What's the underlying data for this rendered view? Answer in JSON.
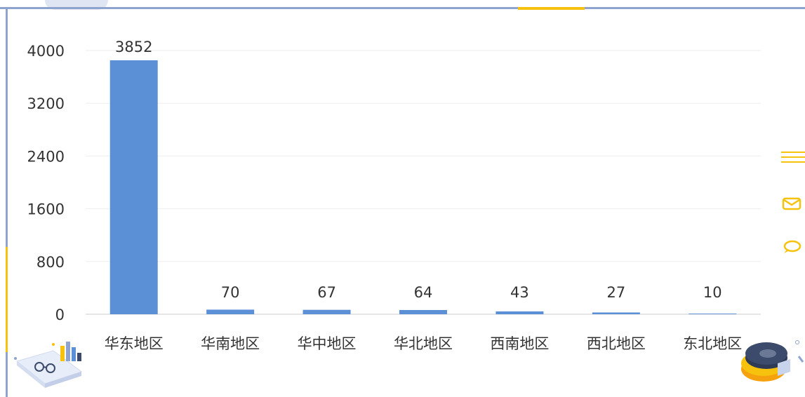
{
  "chart_data": {
    "type": "bar",
    "categories": [
      "华东地区",
      "华南地区",
      "华中地区",
      "华北地区",
      "西南地区",
      "西北地区",
      "东北地区"
    ],
    "values": [
      3852,
      70,
      67,
      64,
      43,
      27,
      10
    ],
    "title": "",
    "xlabel": "",
    "ylabel": "",
    "ylim": [
      0,
      4000
    ],
    "yticks": [
      0,
      800,
      1600,
      2400,
      3200,
      4000
    ],
    "grid": true,
    "bar_color": "#5b8fd6",
    "data_labels": true
  },
  "colors": {
    "frame": "#8fa3cf",
    "accent": "#f6c20e",
    "bar": "#5b8fd6"
  },
  "side_tools": [
    {
      "icon": "menu-icon"
    },
    {
      "icon": "mail-icon"
    },
    {
      "icon": "chat-icon"
    }
  ]
}
